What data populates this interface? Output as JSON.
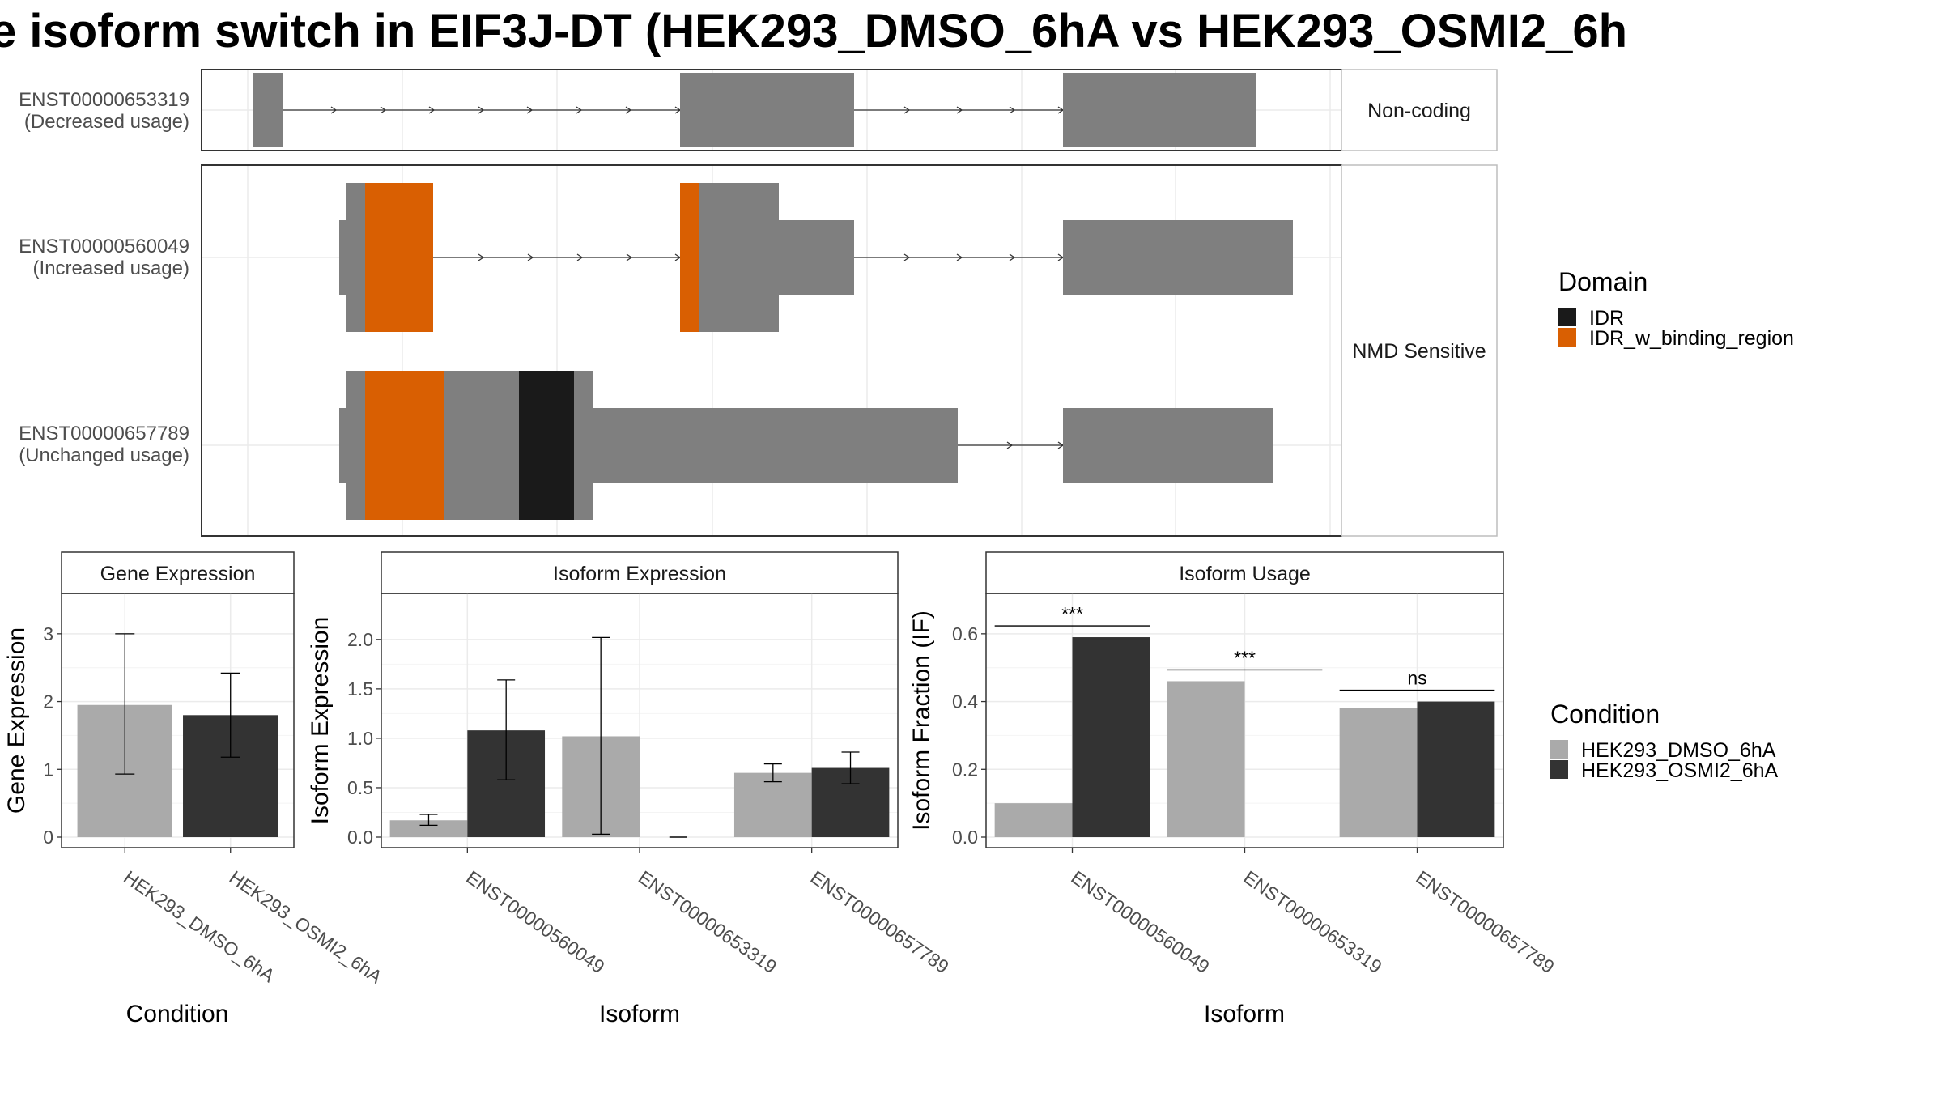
{
  "title": "e isoform switch in EIF3J-DT (HEK293_DMSO_6hA vs HEK293_OSMI2_6h",
  "colors": {
    "exon": "#7f7f7f",
    "idr": "#1a1a1a",
    "idr_binding": "#d95f02",
    "dmso": "#aaaaaa",
    "osmi2": "#333333"
  },
  "structure": {
    "groups": [
      {
        "label": "Non-coding"
      },
      {
        "label": "NMD Sensitive"
      }
    ],
    "transcripts": [
      {
        "id": "ENST00000653319",
        "usage": "(Decreased usage)"
      },
      {
        "id": "ENST00000560049",
        "usage": "(Increased usage)"
      },
      {
        "id": "ENST00000657789",
        "usage": "(Unchanged usage)"
      }
    ]
  },
  "legends": {
    "domain": {
      "title": "Domain",
      "items": [
        {
          "label": "IDR",
          "color": "#1a1a1a"
        },
        {
          "label": "IDR_w_binding_region",
          "color": "#d95f02"
        }
      ]
    },
    "condition": {
      "title": "Condition",
      "items": [
        {
          "label": "HEK293_DMSO_6hA",
          "color": "#aaaaaa"
        },
        {
          "label": "HEK293_OSMI2_6hA",
          "color": "#333333"
        }
      ]
    }
  },
  "chart_data": [
    {
      "type": "bar",
      "title": "Gene Expression",
      "xlabel": "Condition",
      "ylabel": "Gene Expression",
      "ylim": [
        0,
        3.5
      ],
      "yticks": [
        "0",
        "1",
        "2",
        "3"
      ],
      "categories": [
        "HEK293_DMSO_6hA",
        "HEK293_OSMI2_6hA"
      ],
      "values": [
        1.95,
        1.8
      ],
      "errors": [
        [
          0.93,
          3.0
        ],
        [
          1.18,
          2.42
        ]
      ]
    },
    {
      "type": "bar",
      "title": "Isoform Expression",
      "xlabel": "Isoform",
      "ylabel": "Isoform Expression",
      "ylim": [
        0,
        2.4
      ],
      "yticks": [
        "0.0",
        "0.5",
        "1.0",
        "1.5",
        "2.0"
      ],
      "categories": [
        "ENST00000560049",
        "ENST00000653319",
        "ENST00000657789"
      ],
      "series": [
        {
          "name": "HEK293_DMSO_6hA",
          "values": [
            0.17,
            1.02,
            0.65
          ],
          "errors": [
            [
              0.12,
              0.23
            ],
            [
              0.03,
              2.02
            ],
            [
              0.56,
              0.74
            ]
          ]
        },
        {
          "name": "HEK293_OSMI2_6hA",
          "values": [
            1.08,
            0.0,
            0.7
          ],
          "errors": [
            [
              0.58,
              1.59
            ],
            [
              0.0,
              0.0
            ],
            [
              0.54,
              0.86
            ]
          ]
        }
      ]
    },
    {
      "type": "bar",
      "title": "Isoform Usage",
      "xlabel": "Isoform",
      "ylabel": "Isoform Fraction (IF)",
      "ylim": [
        0,
        0.7
      ],
      "yticks": [
        "0.0",
        "0.2",
        "0.4",
        "0.6"
      ],
      "categories": [
        "ENST00000560049",
        "ENST00000653319",
        "ENST00000657789"
      ],
      "series": [
        {
          "name": "HEK293_DMSO_6hA",
          "values": [
            0.1,
            0.46,
            0.38
          ]
        },
        {
          "name": "HEK293_OSMI2_6hA",
          "values": [
            0.59,
            0.0,
            0.4
          ]
        }
      ],
      "significance": [
        "***",
        "***",
        "ns"
      ]
    }
  ]
}
